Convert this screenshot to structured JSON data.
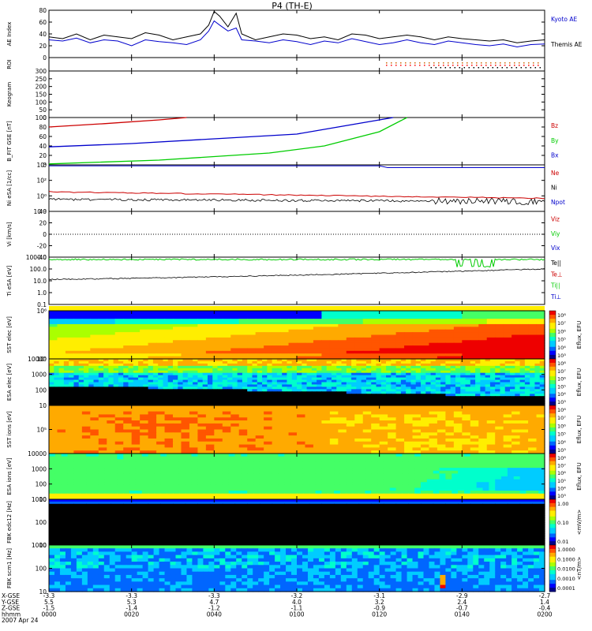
{
  "title": "P4 (TH-E)",
  "chart_data": [
    {
      "type": "line",
      "panel": "ae",
      "ylabel": "AE Index",
      "ylim": [
        0,
        80
      ],
      "yticks": [
        "0",
        "20",
        "40",
        "60",
        "80"
      ],
      "series": [
        {
          "name": "Kyoto AE",
          "color": "#0000cc",
          "x": [
            0,
            5,
            10,
            15,
            20,
            25,
            30,
            35,
            40,
            45,
            50,
            55,
            58,
            60,
            62,
            65,
            68,
            70,
            75,
            80,
            85,
            90,
            95,
            100,
            105,
            110,
            115,
            120,
            125,
            130,
            135,
            140,
            145,
            150,
            155,
            160,
            165,
            170,
            175,
            180
          ],
          "y": [
            30,
            28,
            33,
            25,
            30,
            28,
            20,
            30,
            27,
            25,
            22,
            30,
            45,
            62,
            55,
            45,
            50,
            30,
            28,
            25,
            30,
            27,
            22,
            28,
            25,
            32,
            27,
            22,
            25,
            30,
            25,
            22,
            28,
            25,
            22,
            20,
            23,
            18,
            22,
            23
          ]
        },
        {
          "name": "Themis AE",
          "color": "#000000",
          "x": [
            0,
            5,
            10,
            15,
            20,
            25,
            30,
            35,
            40,
            45,
            50,
            55,
            58,
            60,
            62,
            65,
            68,
            70,
            75,
            80,
            85,
            90,
            95,
            100,
            105,
            110,
            115,
            120,
            125,
            130,
            135,
            140,
            145,
            150,
            155,
            160,
            165,
            170,
            175,
            180
          ],
          "y": [
            35,
            32,
            40,
            30,
            38,
            35,
            32,
            42,
            38,
            30,
            35,
            40,
            55,
            78,
            70,
            52,
            75,
            40,
            30,
            35,
            40,
            38,
            32,
            35,
            30,
            40,
            38,
            32,
            35,
            38,
            35,
            30,
            35,
            32,
            30,
            28,
            30,
            25,
            28,
            30
          ]
        }
      ]
    },
    {
      "type": "line",
      "panel": "roi",
      "ylabel": "ROI"
    },
    {
      "type": "heatmap",
      "panel": "keogram",
      "ylabel": "Keogram",
      "ylim": [
        0,
        300
      ],
      "yticks": [
        "0",
        "50",
        "100",
        "150",
        "200",
        "250",
        "300"
      ]
    },
    {
      "type": "line",
      "panel": "bfit",
      "ylabel": "B_FIT GSE [nT]",
      "ylim": [
        0,
        100
      ],
      "yticks": [
        "0",
        "20",
        "40",
        "60",
        "80",
        "100"
      ],
      "series": [
        {
          "name": "Bz",
          "color": "#cc0000",
          "x": [
            0,
            20,
            40,
            50
          ],
          "y": [
            80,
            87,
            95,
            100
          ]
        },
        {
          "name": "By",
          "color": "#00cc00",
          "x": [
            0,
            40,
            80,
            100,
            120,
            130
          ],
          "y": [
            2,
            10,
            25,
            40,
            70,
            100
          ]
        },
        {
          "name": "Bx",
          "color": "#0000cc",
          "x": [
            0,
            30,
            60,
            90,
            105,
            115,
            125
          ],
          "y": [
            38,
            45,
            55,
            65,
            80,
            90,
            100
          ]
        }
      ]
    },
    {
      "type": "line",
      "panel": "ni",
      "ylabel": "Ni eSA [1/cc]",
      "yscale": "log",
      "yticks": [
        "10⁻²",
        "10⁰",
        "10²",
        "10⁴"
      ],
      "series": [
        {
          "name": "Ne",
          "color": "#cc0000"
        },
        {
          "name": "Ni",
          "color": "#000000"
        },
        {
          "name": "Npot",
          "color": "#0000cc"
        }
      ]
    },
    {
      "type": "line",
      "panel": "vi",
      "ylabel": "Vi [km/s]",
      "ylim": [
        -40,
        40
      ],
      "yticks": [
        "-40",
        "-20",
        "0",
        "20",
        "40"
      ],
      "series": [
        {
          "name": "Viz",
          "color": "#cc0000"
        },
        {
          "name": "Viy",
          "color": "#00cc00"
        },
        {
          "name": "Vix",
          "color": "#0000cc"
        }
      ]
    },
    {
      "type": "line",
      "panel": "ti",
      "ylabel": "Ti eSA [eV]",
      "yscale": "log",
      "yticks": [
        "0.1",
        "1.0",
        "10.0",
        "100.0",
        "1000.0"
      ],
      "series": [
        {
          "name": "Te||",
          "color": "#000000"
        },
        {
          "name": "Te⊥",
          "color": "#cc0000"
        },
        {
          "name": "Ti||",
          "color": "#00cc00"
        },
        {
          "name": "Ti⊥",
          "color": "#0000cc"
        }
      ]
    },
    {
      "type": "heatmap",
      "panel": "sst_e",
      "ylabel": "SST elec [eV]",
      "yscale": "log",
      "yticks": [
        "10⁵",
        "10⁶"
      ],
      "colorbar": "Eflux, EFU",
      "cticks": [
        "10⁸",
        "10⁷",
        "10⁶",
        "10⁵",
        "10⁴",
        "10³"
      ]
    },
    {
      "type": "heatmap",
      "panel": "esa_e",
      "ylabel": "ESA elec [eV]",
      "yscale": "log",
      "yticks": [
        "10",
        "100",
        "1000",
        "10000"
      ],
      "colorbar": "Eflux, EFU",
      "cticks": [
        "10⁸",
        "10⁷",
        "10⁶",
        "10⁵",
        "10⁴",
        "10³"
      ]
    },
    {
      "type": "heatmap",
      "panel": "sst_i",
      "ylabel": "SST ions [eV]",
      "yscale": "log",
      "yticks": [
        "10⁵"
      ],
      "colorbar": "Eflux, EFU",
      "cticks": [
        "10⁸",
        "10⁷",
        "10⁶",
        "10⁵",
        "10⁴",
        "10³"
      ]
    },
    {
      "type": "heatmap",
      "panel": "esa_i",
      "ylabel": "ESA ions [eV]",
      "yscale": "log",
      "yticks": [
        "10",
        "100",
        "1000",
        "10000"
      ],
      "colorbar": "Eflux, EFU",
      "cticks": [
        "10⁸",
        "10⁷",
        "10⁶",
        "10⁵",
        "10⁴",
        "10³"
      ]
    },
    {
      "type": "heatmap",
      "panel": "fbk_e",
      "ylabel": "FBK edc12 [Hz]",
      "yscale": "log",
      "yticks": [
        "10",
        "100",
        "1000"
      ],
      "colorbar": "<mV/m>",
      "cticks": [
        "1.00",
        "0.10",
        "0.01"
      ]
    },
    {
      "type": "heatmap",
      "panel": "fbk_b",
      "ylabel": "FBK scm1 [Hz]",
      "yscale": "log",
      "yticks": [
        "10",
        "100",
        "1000"
      ],
      "colorbar": "<nT/m>",
      "cticks": [
        "1.0000",
        "0.1000",
        "0.0100",
        "0.0010",
        "0.0001"
      ]
    }
  ],
  "legends": {
    "ae": [
      "Kyoto AE",
      "Themis AE"
    ],
    "bfit": [
      "Bz",
      "By",
      "Bx"
    ],
    "ni": [
      "Ne",
      "Ni",
      "Npot"
    ],
    "vi": [
      "Viz",
      "Viy",
      "Vix"
    ],
    "ti": [
      "Te||",
      "Te⊥",
      "Ti||",
      "Ti⊥"
    ]
  },
  "ylabels": {
    "ae": "AE Index",
    "roi": "ROI",
    "keogram": "Keogram",
    "bfit": "B_FIT GSE [nT]",
    "ni": "Ni eSA [1/cc]",
    "vi": "Vi [km/s]",
    "ti": "Ti eSA [eV]",
    "sst_e": "SST elec [eV]",
    "esa_e": "ESA elec [eV]",
    "sst_i": "SST ions [eV]",
    "esa_i": "ESA ions [eV]",
    "fbk_e": "FBK edc12 [Hz]",
    "fbk_b": "FBK scm1 [Hz]"
  },
  "xaxis": {
    "row_labels": [
      "X-GSE",
      "Y-GSE",
      "Z-GSE",
      "hhmm",
      "2007 Apr 24"
    ],
    "columns": [
      [
        "-3.3",
        "5.5",
        "-1.5",
        "0000"
      ],
      [
        "-3.3",
        "5.3",
        "-1.4",
        "0020"
      ],
      [
        "-3.3",
        "4.7",
        "-1.2",
        "0040"
      ],
      [
        "-3.2",
        "4.0",
        "-1.1",
        "0100"
      ],
      [
        "-3.1",
        "3.2",
        "-0.9",
        "0120"
      ],
      [
        "-2.9",
        "2.4",
        "-0.7",
        "0140"
      ],
      [
        "-2.7",
        "1.4",
        "-0.4",
        "0200"
      ]
    ]
  },
  "colors": {
    "kyoto": "#0000cc",
    "themis": "#000000",
    "red": "#cc0000",
    "green": "#00cc00",
    "blue": "#0000cc"
  }
}
